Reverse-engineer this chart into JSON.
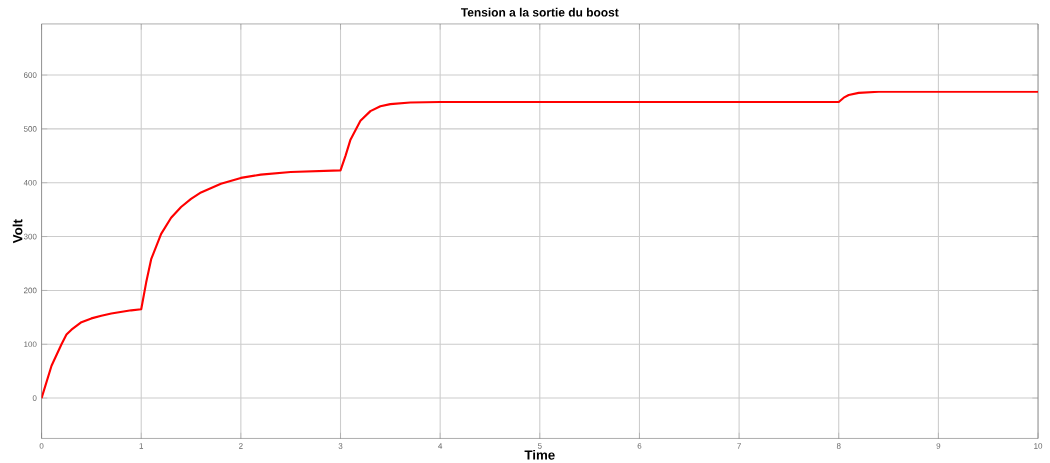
{
  "chart_data": {
    "type": "line",
    "title": "Tension a la sortie du boost",
    "xlabel": "Time",
    "ylabel": "Volt",
    "xlim": [
      0,
      10
    ],
    "ylim": [
      -75,
      695
    ],
    "xticks": [
      0,
      1,
      2,
      3,
      4,
      5,
      6,
      7,
      8,
      9,
      10
    ],
    "yticks": [
      0,
      100,
      200,
      300,
      400,
      500,
      600
    ],
    "grid": true,
    "marker": "none",
    "line_style": "solid",
    "series": [
      {
        "color": "#ff0000",
        "x": [
          0,
          0.1,
          0.2,
          0.25,
          0.3,
          0.4,
          0.5,
          0.6,
          0.7,
          0.8,
          0.9,
          1.0,
          1.05,
          1.1,
          1.2,
          1.3,
          1.4,
          1.5,
          1.6,
          1.8,
          2.0,
          2.2,
          2.5,
          3.0,
          3.05,
          3.1,
          3.2,
          3.3,
          3.4,
          3.5,
          3.7,
          4.0,
          8.0,
          8.05,
          8.1,
          8.2,
          8.4,
          10
        ],
        "values": [
          0,
          60,
          100,
          118,
          127,
          141,
          148,
          153,
          157,
          160,
          163,
          165,
          215,
          258,
          305,
          335,
          355,
          370,
          382,
          398,
          409,
          415,
          420,
          423,
          450,
          480,
          515,
          533,
          542,
          546,
          549,
          550,
          550,
          558,
          563,
          567,
          569,
          569
        ]
      }
    ]
  }
}
